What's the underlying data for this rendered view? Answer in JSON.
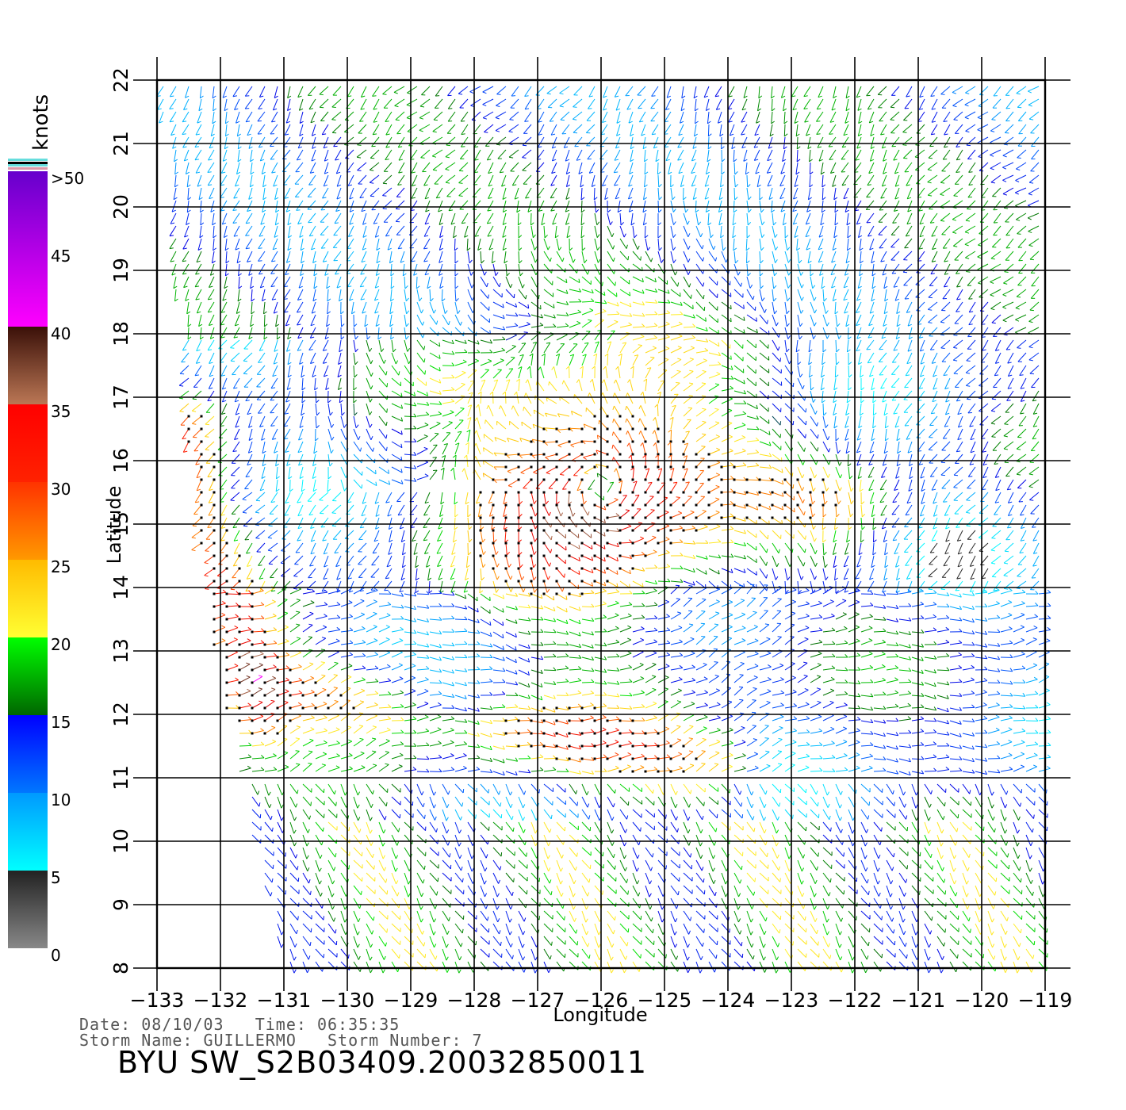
{
  "chart_data": {
    "type": "wind-vector-map",
    "title": "BYU  SW_S2B03409.20032850011",
    "xlabel": "Longitude",
    "ylabel": "Latitude",
    "xlim": [
      -133,
      -119
    ],
    "ylim": [
      8,
      22
    ],
    "x_ticks": [
      "-133",
      "-132",
      "-131",
      "-130",
      "-129",
      "-128",
      "-127",
      "-126",
      "-125",
      "-124",
      "-123",
      "-122",
      "-121",
      "-120",
      "-119"
    ],
    "y_ticks": [
      "8",
      "9",
      "10",
      "11",
      "12",
      "13",
      "14",
      "15",
      "16",
      "17",
      "18",
      "19",
      "20",
      "21",
      "22"
    ],
    "grid": true,
    "legend": {
      "title": "knots",
      "placement": "left",
      "labels": [
        ">50",
        "45",
        "40",
        "35",
        "30",
        "25",
        "20",
        "15",
        "10",
        "5",
        "0"
      ],
      "bands": [
        {
          "range": [
            0,
            5
          ],
          "colors": [
            "#888888",
            "#222222"
          ]
        },
        {
          "range": [
            5,
            10
          ],
          "colors": [
            "#00ffff",
            "#0099ff"
          ]
        },
        {
          "range": [
            10,
            15
          ],
          "colors": [
            "#0077ff",
            "#0000ff"
          ]
        },
        {
          "range": [
            15,
            20
          ],
          "colors": [
            "#006600",
            "#00ff00"
          ]
        },
        {
          "range": [
            20,
            25
          ],
          "colors": [
            "#ffff33",
            "#ffbb00"
          ]
        },
        {
          "range": [
            25,
            30
          ],
          "colors": [
            "#ff9900",
            "#ff3300"
          ]
        },
        {
          "range": [
            30,
            35
          ],
          "colors": [
            "#ff2200",
            "#ff0000"
          ]
        },
        {
          "range": [
            35,
            40
          ],
          "colors": [
            "#bb7755",
            "#3a1008"
          ]
        },
        {
          "range": [
            40,
            50
          ],
          "colors": [
            "#ff00ff",
            "#6600cc"
          ]
        }
      ]
    },
    "swath_edge_west": [
      [
        -132.9,
        21.5
      ],
      [
        -132.6,
        17
      ],
      [
        -132.1,
        13
      ],
      [
        -131.6,
        10.5
      ],
      [
        -131.0,
        8
      ]
    ],
    "wind_features": [
      {
        "kind": "cyclone",
        "name": "GUILLERMO",
        "center": [
          -126.0,
          15.6
        ],
        "max_knots": 40,
        "radius_deg": 2.4
      },
      {
        "kind": "band",
        "from": [
          -131.5,
          12.5
        ],
        "to": [
          -124.3,
          11.2
        ],
        "knots": 28
      },
      {
        "kind": "band",
        "from": [
          -132.5,
          16.5
        ],
        "to": [
          -131.5,
          12
        ],
        "knots": 28
      },
      {
        "kind": "calm",
        "center": [
          -120.5,
          14.8
        ],
        "knots": 4
      },
      {
        "kind": "calm",
        "center": [
          -128.5,
          12.6
        ],
        "knots": 8
      },
      {
        "kind": "ridge",
        "center": [
          -122.3,
          15.4
        ],
        "knots": 22
      }
    ]
  },
  "meta": {
    "date_line": "Date: 08/10/03   Time: 06:35:35",
    "storm_line": "Storm Name: GUILLERMO   Storm Number: 7"
  },
  "colors": {
    "grid": "#000000",
    "background": "#ffffff"
  }
}
